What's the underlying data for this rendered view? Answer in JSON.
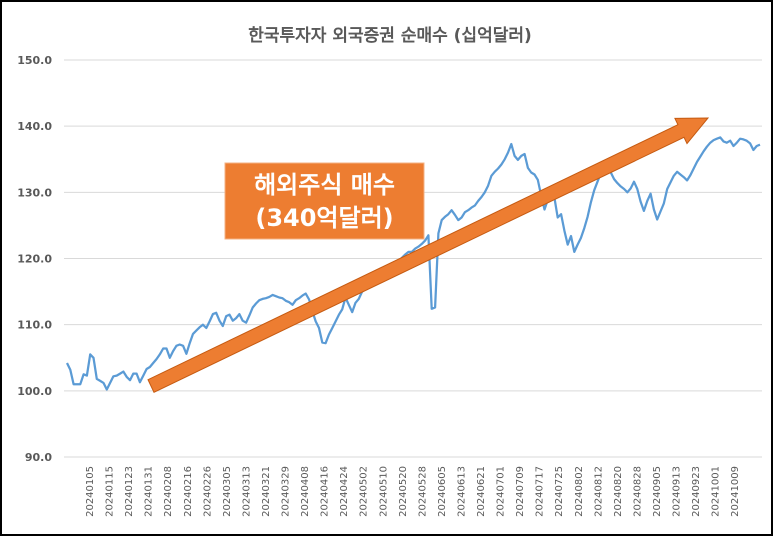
{
  "chart_data": {
    "type": "line",
    "title": "한국투자자 외국증권 순매수 (십억달러)",
    "xlabel": "",
    "ylabel": "",
    "ylim": [
      90,
      150
    ],
    "yticks": [
      "150.0",
      "140.0",
      "130.0",
      "120.0",
      "110.0",
      "100.0",
      "90.0"
    ],
    "xticks": [
      "20240105",
      "20240115",
      "20240123",
      "20240131",
      "20240208",
      "20240216",
      "20240226",
      "20240305",
      "20240313",
      "20240321",
      "20240329",
      "20240408",
      "20240416",
      "20240424",
      "20240502",
      "20240510",
      "20240520",
      "20240528",
      "20240605",
      "20240613",
      "20240621",
      "20240701",
      "20240709",
      "20240717",
      "20240725",
      "20240802",
      "20240812",
      "20240820",
      "20240828",
      "20240905",
      "20240913",
      "20240923",
      "20241001",
      "20241009"
    ],
    "grid": true,
    "legend": "none",
    "line_color": "#5b9bd5",
    "arrow_color": "#ed7d31",
    "annotation": {
      "line1": "해외주식 매수",
      "line2": "(340억달러)"
    },
    "series": [
      {
        "values": [
          104.2,
          103.2,
          101.0,
          101.0,
          101.0,
          102.5,
          102.3,
          105.5,
          105.0,
          101.8,
          101.5,
          101.2,
          100.2,
          101.2,
          102.2,
          102.3,
          102.6,
          102.9,
          102.1,
          101.6,
          102.6,
          102.6,
          101.3,
          102.3,
          103.3,
          103.6,
          104.2,
          104.8,
          105.5,
          106.4,
          106.4,
          105.0,
          106.0,
          106.8,
          107.0,
          106.8,
          105.6,
          107.2,
          108.6,
          109.1,
          109.6,
          110.0,
          109.5,
          110.5,
          111.6,
          111.8,
          110.6,
          109.8,
          111.3,
          111.5,
          110.6,
          111.0,
          111.6,
          110.6,
          110.3,
          111.4,
          112.6,
          113.2,
          113.7,
          113.9,
          114.0,
          114.2,
          114.5,
          114.3,
          114.1,
          114.0,
          113.6,
          113.4,
          113.0,
          113.7,
          114.0,
          114.4,
          114.7,
          113.8,
          112.0,
          110.5,
          109.5,
          107.3,
          107.2,
          108.5,
          109.5,
          110.5,
          111.5,
          112.3,
          114.1,
          113.0,
          111.9,
          113.3,
          113.9,
          115.0,
          115.4,
          115.6,
          115.8,
          116.1,
          116.5,
          117.0,
          117.5,
          118.3,
          118.8,
          119.3,
          119.6,
          120.1,
          120.6,
          121.0,
          121.0,
          121.5,
          121.8,
          122.2,
          122.7,
          123.5,
          112.4,
          112.6,
          123.8,
          125.8,
          126.3,
          126.7,
          127.3,
          126.6,
          125.8,
          126.2,
          127.0,
          127.3,
          127.7,
          128.0,
          128.7,
          129.3,
          130.0,
          131.0,
          132.5,
          133.1,
          133.6,
          134.2,
          135.0,
          136.0,
          137.3,
          135.5,
          134.9,
          135.5,
          135.8,
          133.7,
          133.0,
          132.7,
          131.9,
          129.5,
          127.4,
          128.9,
          130.7,
          129.2,
          126.2,
          126.7,
          124.2,
          122.1,
          123.4,
          121.0,
          122.1,
          123.1,
          124.6,
          126.3,
          128.5,
          130.3,
          131.6,
          132.9,
          133.6,
          134.2,
          133.0,
          132.0,
          131.4,
          130.9,
          130.5,
          130.0,
          130.6,
          131.6,
          130.5,
          128.6,
          127.2,
          128.7,
          129.8,
          127.4,
          125.9,
          127.1,
          128.3,
          130.5,
          131.5,
          132.5,
          133.1,
          132.7,
          132.3,
          131.8,
          132.6,
          133.6,
          134.6,
          135.4,
          136.2,
          136.9,
          137.5,
          137.9,
          138.1,
          138.3,
          137.7,
          137.5,
          137.8,
          137.0,
          137.5,
          138.1,
          138.0,
          137.8,
          137.4,
          136.4,
          137.0,
          137.2
        ]
      }
    ]
  }
}
